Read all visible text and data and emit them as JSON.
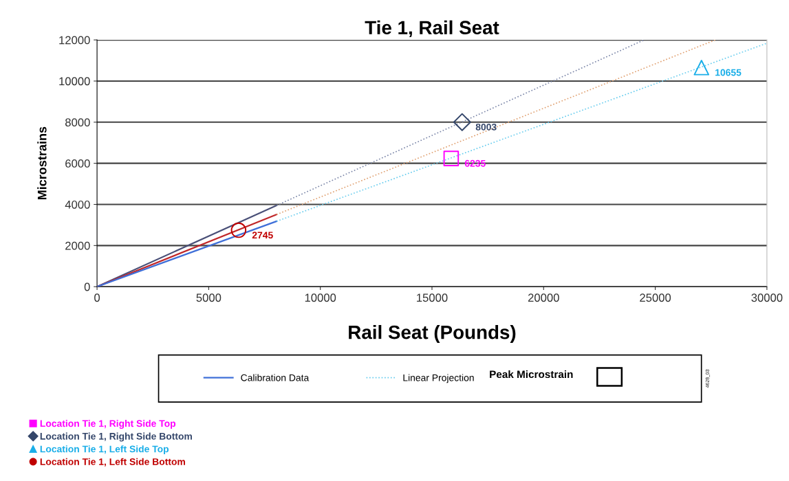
{
  "chart_data": {
    "type": "line",
    "title": "Tie 1, Rail Seat",
    "xlabel": "Rail Seat (Pounds)",
    "ylabel": "Microstrains",
    "xlim": [
      0,
      30000
    ],
    "xticks": [
      0,
      5000,
      10000,
      15000,
      20000,
      25000,
      30000
    ],
    "ylim": [
      0,
      12000
    ],
    "yticks": [
      0,
      2000,
      4000,
      6000,
      8000,
      10000,
      12000
    ],
    "grid": "y",
    "legend": "bottom",
    "annotations": [
      "Peak Microstrain",
      "4628_03"
    ],
    "series": [
      {
        "color": "#4a5078",
        "line_style": "solid",
        "x": [
          0,
          8040
        ],
        "values": [
          0,
          3950
        ]
      },
      {
        "color": "#c0282a",
        "line_style": "solid",
        "x": [
          0,
          8040
        ],
        "values": [
          0,
          3510
        ]
      },
      {
        "name": "Calibration Data",
        "color": "#3f6fd8",
        "line_style": "solid",
        "x": [
          0,
          8040
        ],
        "values": [
          0,
          3180
        ]
      },
      {
        "color": "#7b86a8",
        "line_style": "dotted",
        "x": [
          8040,
          24500
        ],
        "values": [
          3950,
          12000
        ]
      },
      {
        "color": "#e0a070",
        "line_style": "dotted",
        "x": [
          8040,
          27690
        ],
        "values": [
          3510,
          12000
        ]
      },
      {
        "name": "Linear Projection",
        "color": "#66ccee",
        "line_style": "dotted",
        "x": [
          8040,
          30000
        ],
        "values": [
          3180,
          11840
        ]
      },
      {
        "type": "scatter",
        "name": "Location Tie 1, Right Side Top",
        "color": "#ff00ff",
        "marker": "square",
        "x": [
          15860
        ],
        "values": [
          6235
        ],
        "data_labels": true
      },
      {
        "type": "scatter",
        "name": "Location Tie 1, Right Side Bottom",
        "color": "#34466a",
        "marker": "diamond",
        "x": [
          16350
        ],
        "values": [
          8003
        ],
        "data_labels": true
      },
      {
        "type": "scatter",
        "name": "Location Tie 1, Left Side Top",
        "color": "#1aaee8",
        "marker": "triangle",
        "x": [
          27070
        ],
        "values": [
          10655
        ],
        "data_labels": true
      },
      {
        "type": "scatter",
        "name": "Location Tie 1, Left Side Bottom",
        "color": "#c00000",
        "marker": "circle",
        "x": [
          6340
        ],
        "values": [
          2745
        ],
        "data_labels": true
      }
    ]
  }
}
